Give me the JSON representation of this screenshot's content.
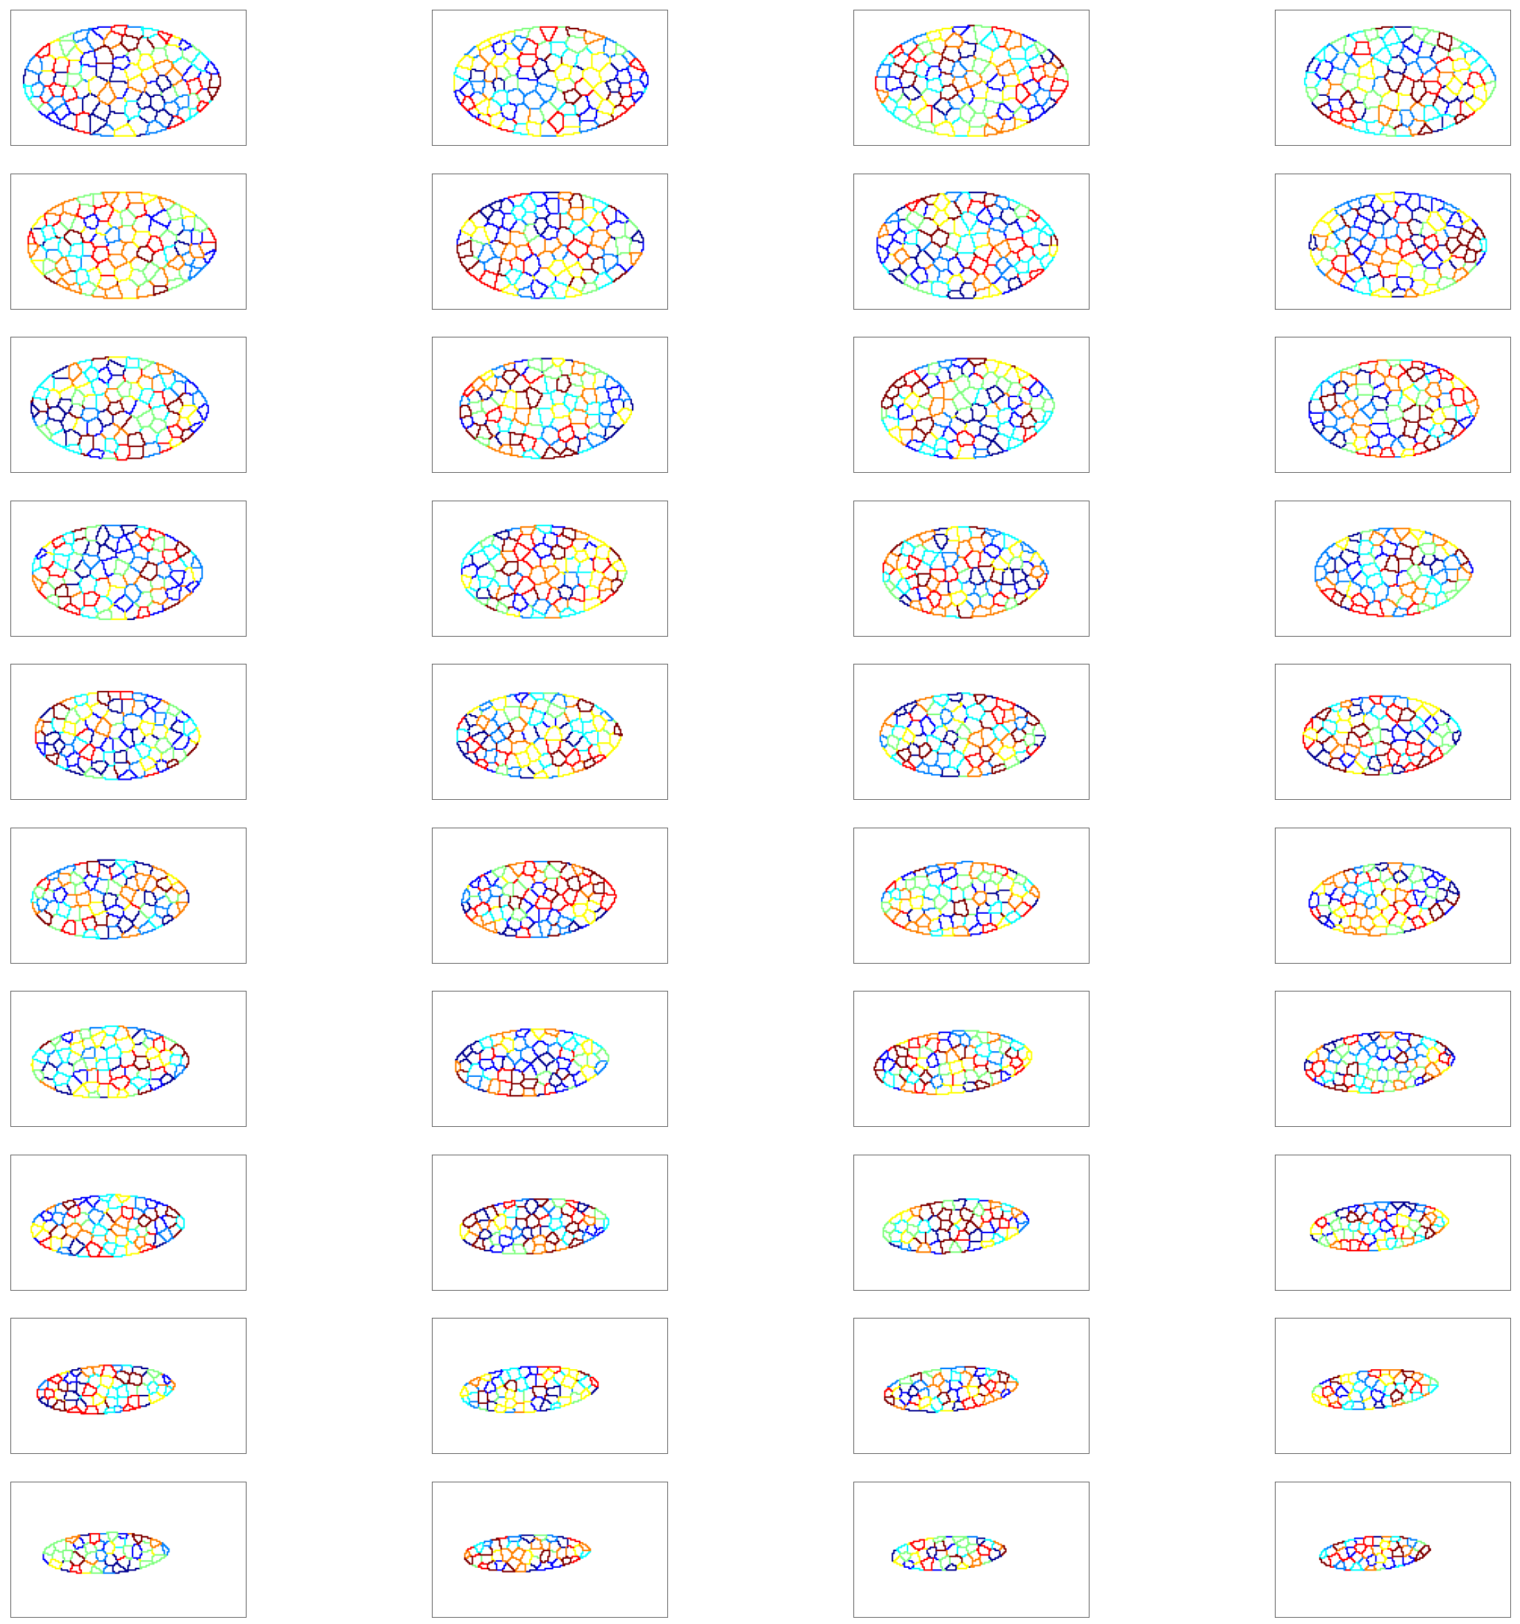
{
  "figure": {
    "rows": 10,
    "cols": 4,
    "colormap": [
      "#00008f",
      "#0000ff",
      "#0080ff",
      "#00ffff",
      "#80ff80",
      "#ffff00",
      "#ff8000",
      "#ff0000",
      "#800000"
    ],
    "frame_color": "#555555",
    "panels": [
      {
        "stretch": 1.0,
        "aspect": 0.93,
        "tilt": 0.0,
        "center": 0.47
      },
      {
        "stretch": 0.99,
        "aspect": 0.92,
        "tilt": -0.01,
        "center": 0.5
      },
      {
        "stretch": 0.98,
        "aspect": 0.93,
        "tilt": -0.02,
        "center": 0.5
      },
      {
        "stretch": 0.97,
        "aspect": 0.92,
        "tilt": 0.0,
        "center": 0.53
      },
      {
        "stretch": 0.96,
        "aspect": 0.9,
        "tilt": 0.0,
        "center": 0.47
      },
      {
        "stretch": 0.95,
        "aspect": 0.9,
        "tilt": -0.01,
        "center": 0.5
      },
      {
        "stretch": 0.92,
        "aspect": 0.9,
        "tilt": 0.0,
        "center": 0.48
      },
      {
        "stretch": 0.9,
        "aspect": 0.88,
        "tilt": 0.0,
        "center": 0.52
      },
      {
        "stretch": 0.9,
        "aspect": 0.86,
        "tilt": 0.01,
        "center": 0.46
      },
      {
        "stretch": 0.88,
        "aspect": 0.84,
        "tilt": -0.02,
        "center": 0.48
      },
      {
        "stretch": 0.88,
        "aspect": 0.84,
        "tilt": -0.03,
        "center": 0.48
      },
      {
        "stretch": 0.86,
        "aspect": 0.82,
        "tilt": -0.02,
        "center": 0.5
      },
      {
        "stretch": 0.87,
        "aspect": 0.8,
        "tilt": 0.0,
        "center": 0.45
      },
      {
        "stretch": 0.84,
        "aspect": 0.78,
        "tilt": 0.0,
        "center": 0.47
      },
      {
        "stretch": 0.84,
        "aspect": 0.76,
        "tilt": 0.0,
        "center": 0.47
      },
      {
        "stretch": 0.8,
        "aspect": 0.74,
        "tilt": -0.02,
        "center": 0.5
      },
      {
        "stretch": 0.84,
        "aspect": 0.74,
        "tilt": 0.01,
        "center": 0.45
      },
      {
        "stretch": 0.84,
        "aspect": 0.72,
        "tilt": -0.01,
        "center": 0.45
      },
      {
        "stretch": 0.84,
        "aspect": 0.7,
        "tilt": -0.01,
        "center": 0.46
      },
      {
        "stretch": 0.8,
        "aspect": 0.66,
        "tilt": -0.03,
        "center": 0.45
      },
      {
        "stretch": 0.8,
        "aspect": 0.66,
        "tilt": -0.02,
        "center": 0.42
      },
      {
        "stretch": 0.78,
        "aspect": 0.64,
        "tilt": -0.04,
        "center": 0.45
      },
      {
        "stretch": 0.8,
        "aspect": 0.62,
        "tilt": -0.05,
        "center": 0.45
      },
      {
        "stretch": 0.76,
        "aspect": 0.6,
        "tilt": -0.06,
        "center": 0.46
      },
      {
        "stretch": 0.8,
        "aspect": 0.6,
        "tilt": -0.03,
        "center": 0.42
      },
      {
        "stretch": 0.78,
        "aspect": 0.56,
        "tilt": -0.05,
        "center": 0.42
      },
      {
        "stretch": 0.8,
        "aspect": 0.52,
        "tilt": -0.08,
        "center": 0.42
      },
      {
        "stretch": 0.76,
        "aspect": 0.5,
        "tilt": -0.06,
        "center": 0.44
      },
      {
        "stretch": 0.78,
        "aspect": 0.52,
        "tilt": -0.04,
        "center": 0.41
      },
      {
        "stretch": 0.76,
        "aspect": 0.46,
        "tilt": -0.06,
        "center": 0.43
      },
      {
        "stretch": 0.74,
        "aspect": 0.44,
        "tilt": -0.08,
        "center": 0.43
      },
      {
        "stretch": 0.7,
        "aspect": 0.4,
        "tilt": -0.08,
        "center": 0.44
      },
      {
        "stretch": 0.7,
        "aspect": 0.4,
        "tilt": -0.06,
        "center": 0.4
      },
      {
        "stretch": 0.7,
        "aspect": 0.38,
        "tilt": -0.07,
        "center": 0.41
      },
      {
        "stretch": 0.68,
        "aspect": 0.36,
        "tilt": -0.09,
        "center": 0.41
      },
      {
        "stretch": 0.64,
        "aspect": 0.32,
        "tilt": -0.08,
        "center": 0.42
      },
      {
        "stretch": 0.64,
        "aspect": 0.34,
        "tilt": -0.04,
        "center": 0.4
      },
      {
        "stretch": 0.64,
        "aspect": 0.3,
        "tilt": -0.05,
        "center": 0.4
      },
      {
        "stretch": 0.58,
        "aspect": 0.28,
        "tilt": -0.06,
        "center": 0.4
      },
      {
        "stretch": 0.56,
        "aspect": 0.28,
        "tilt": -0.07,
        "center": 0.42
      }
    ]
  }
}
